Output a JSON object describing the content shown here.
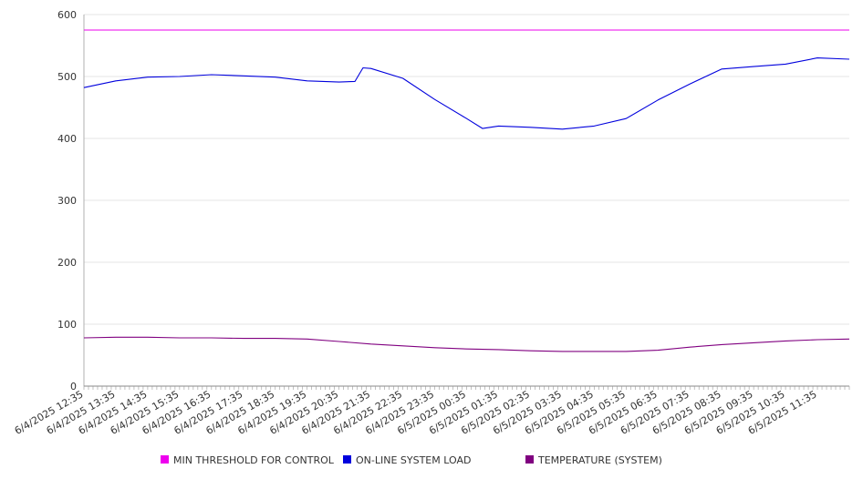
{
  "chart_data": {
    "type": "line",
    "title": "",
    "xlabel": "",
    "ylabel": "",
    "ylim": [
      0,
      600
    ],
    "yticks": [
      0,
      100,
      200,
      300,
      400,
      500,
      600
    ],
    "grid": "horizontal",
    "legend_position": "bottom",
    "x_tick_labels": [
      "6/4/2025 12:35",
      "6/4/2025 13:35",
      "6/4/2025 14:35",
      "6/4/2025 15:35",
      "6/4/2025 16:35",
      "6/4/2025 17:35",
      "6/4/2025 18:35",
      "6/4/2025 19:35",
      "6/4/2025 20:35",
      "6/4/2025 21:35",
      "6/4/2025 22:35",
      "6/4/2025 23:35",
      "6/5/2025 00:35",
      "6/5/2025 01:35",
      "6/5/2025 02:35",
      "6/5/2025 03:35",
      "6/5/2025 04:35",
      "6/5/2025 05:35",
      "6/5/2025 06:35",
      "6/5/2025 07:35",
      "6/5/2025 08:35",
      "6/5/2025 09:35",
      "6/5/2025 10:35",
      "6/5/2025 11:35"
    ],
    "series": [
      {
        "name": "MIN THRESHOLD FOR CONTROL",
        "color": "#ee00ee",
        "points": [
          [
            "6/4/2025 12:35",
            575
          ],
          [
            "6/5/2025 12:35",
            575
          ]
        ]
      },
      {
        "name": "ON-LINE SYSTEM LOAD",
        "color": "#0000dd",
        "points": [
          [
            "6/4/2025 12:35",
            482
          ],
          [
            "6/4/2025 13:35",
            493
          ],
          [
            "6/4/2025 14:35",
            499
          ],
          [
            "6/4/2025 15:35",
            500
          ],
          [
            "6/4/2025 16:35",
            503
          ],
          [
            "6/4/2025 17:35",
            501
          ],
          [
            "6/4/2025 18:35",
            499
          ],
          [
            "6/4/2025 19:35",
            493
          ],
          [
            "6/4/2025 20:35",
            491
          ],
          [
            "6/4/2025 21:05",
            492
          ],
          [
            "6/4/2025 21:20",
            514
          ],
          [
            "6/4/2025 21:35",
            513
          ],
          [
            "6/4/2025 22:35",
            497
          ],
          [
            "6/4/2025 23:35",
            463
          ],
          [
            "6/5/2025 00:35",
            432
          ],
          [
            "6/5/2025 01:05",
            416
          ],
          [
            "6/5/2025 01:35",
            420
          ],
          [
            "6/5/2025 02:35",
            418
          ],
          [
            "6/5/2025 03:35",
            415
          ],
          [
            "6/5/2025 04:35",
            420
          ],
          [
            "6/5/2025 05:35",
            432
          ],
          [
            "6/5/2025 06:35",
            462
          ],
          [
            "6/5/2025 07:35",
            488
          ],
          [
            "6/5/2025 08:35",
            512
          ],
          [
            "6/5/2025 09:35",
            516
          ],
          [
            "6/5/2025 10:35",
            520
          ],
          [
            "6/5/2025 11:35",
            530
          ],
          [
            "6/5/2025 12:35",
            528
          ]
        ]
      },
      {
        "name": "TEMPERATURE (SYSTEM)",
        "color": "#800080",
        "points": [
          [
            "6/4/2025 12:35",
            78
          ],
          [
            "6/4/2025 13:35",
            79
          ],
          [
            "6/4/2025 14:35",
            79
          ],
          [
            "6/4/2025 15:35",
            78
          ],
          [
            "6/4/2025 16:35",
            78
          ],
          [
            "6/4/2025 17:35",
            77
          ],
          [
            "6/4/2025 18:35",
            77
          ],
          [
            "6/4/2025 19:35",
            76
          ],
          [
            "6/4/2025 20:35",
            72
          ],
          [
            "6/4/2025 21:35",
            68
          ],
          [
            "6/4/2025 22:35",
            65
          ],
          [
            "6/4/2025 23:35",
            62
          ],
          [
            "6/5/2025 00:35",
            60
          ],
          [
            "6/5/2025 01:35",
            59
          ],
          [
            "6/5/2025 02:35",
            57
          ],
          [
            "6/5/2025 03:35",
            56
          ],
          [
            "6/5/2025 04:35",
            56
          ],
          [
            "6/5/2025 05:35",
            56
          ],
          [
            "6/5/2025 06:35",
            58
          ],
          [
            "6/5/2025 07:35",
            63
          ],
          [
            "6/5/2025 08:35",
            67
          ],
          [
            "6/5/2025 09:35",
            70
          ],
          [
            "6/5/2025 10:35",
            73
          ],
          [
            "6/5/2025 11:35",
            75
          ],
          [
            "6/5/2025 12:35",
            76
          ]
        ]
      }
    ]
  }
}
